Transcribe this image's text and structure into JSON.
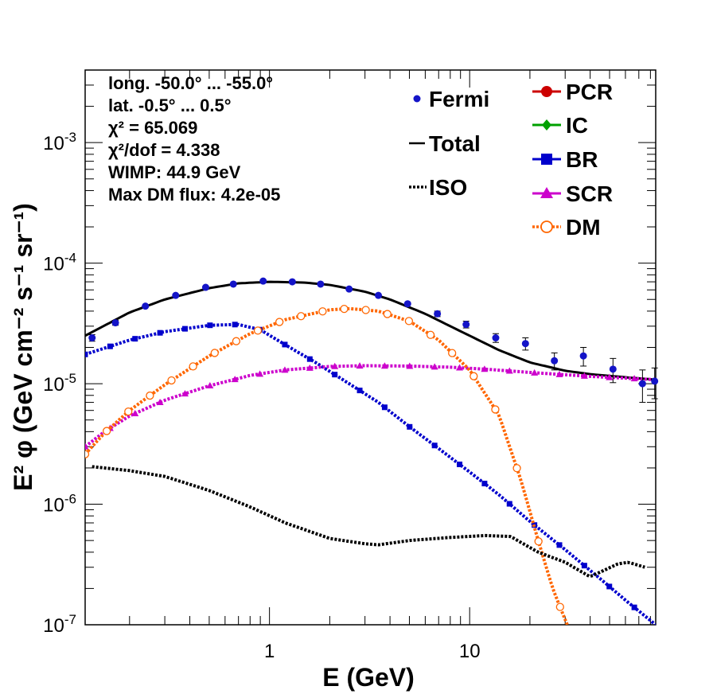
{
  "chart_data": {
    "type": "line",
    "x_scale": "log",
    "y_scale": "log",
    "xlabel": "E (GeV)",
    "ylabel": "E² φ (GeV cm⁻² s⁻¹ sr⁻¹)",
    "xlim": [
      0.12,
      85
    ],
    "ylim": [
      1e-07,
      0.004
    ],
    "x_ticks": [
      {
        "value": 1,
        "label": "1"
      },
      {
        "value": 10,
        "label": "10"
      }
    ],
    "y_ticks": [
      {
        "value": 1e-07,
        "base": "10",
        "exp": "-7"
      },
      {
        "value": 1e-06,
        "base": "10",
        "exp": "-6"
      },
      {
        "value": 1e-05,
        "base": "10",
        "exp": "-5"
      },
      {
        "value": 0.0001,
        "base": "10",
        "exp": "-4"
      },
      {
        "value": 0.001,
        "base": "10",
        "exp": "-3"
      }
    ],
    "info_lines": [
      "long. -50.0° ... -55.0°",
      "lat. -0.5° ... 0.5°",
      "χ² = 65.069",
      "χ²/dof = 4.338",
      "WIMP: 44.9 GeV",
      "Max DM flux: 4.2e-05"
    ],
    "legend_left": [
      {
        "name": "Fermi",
        "color": "#1414c8",
        "marker": "dot"
      },
      {
        "name": "Total",
        "color": "#000000",
        "marker": "line"
      },
      {
        "name": "ISO",
        "color": "#000000",
        "marker": "dotted"
      }
    ],
    "legend_right": [
      {
        "name": "PCR",
        "color": "#cc0000",
        "marker": "circle"
      },
      {
        "name": "IC",
        "color": "#00a000",
        "marker": "diamond"
      },
      {
        "name": "BR",
        "color": "#0000cc",
        "marker": "square"
      },
      {
        "name": "SCR",
        "color": "#cc00cc",
        "marker": "triangle"
      },
      {
        "name": "DM",
        "color": "#ff6600",
        "marker": "open-circle"
      }
    ],
    "fermi": [
      {
        "x": 0.13,
        "y": 2.4e-05,
        "err": 1.5e-06
      },
      {
        "x": 0.17,
        "y": 3.2e-05,
        "err": 1.5e-06
      },
      {
        "x": 0.24,
        "y": 4.4e-05,
        "err": 2e-06
      },
      {
        "x": 0.34,
        "y": 5.4e-05,
        "err": 2e-06
      },
      {
        "x": 0.48,
        "y": 6.3e-05,
        "err": 2e-06
      },
      {
        "x": 0.66,
        "y": 6.7e-05,
        "err": 2e-06
      },
      {
        "x": 0.93,
        "y": 7.1e-05,
        "err": 2e-06
      },
      {
        "x": 1.3,
        "y": 7e-05,
        "err": 2e-06
      },
      {
        "x": 1.8,
        "y": 6.7e-05,
        "err": 2e-06
      },
      {
        "x": 2.5,
        "y": 6.1e-05,
        "err": 2e-06
      },
      {
        "x": 3.5,
        "y": 5.4e-05,
        "err": 2e-06
      },
      {
        "x": 4.9,
        "y": 4.6e-05,
        "err": 2e-06
      },
      {
        "x": 6.9,
        "y": 3.8e-05,
        "err": 2e-06
      },
      {
        "x": 9.6,
        "y": 3.1e-05,
        "err": 2e-06
      },
      {
        "x": 13.5,
        "y": 2.4e-05,
        "err": 2e-06
      },
      {
        "x": 19,
        "y": 2.15e-05,
        "err": 2.5e-06
      },
      {
        "x": 26.5,
        "y": 1.55e-05,
        "err": 2.5e-06
      },
      {
        "x": 37,
        "y": 1.7e-05,
        "err": 3e-06
      },
      {
        "x": 52,
        "y": 1.32e-05,
        "err": 3e-06
      },
      {
        "x": 73,
        "y": 1e-05,
        "err": 3e-06
      },
      {
        "x": 84,
        "y": 1.05e-05,
        "err": 3e-06
      }
    ],
    "series": [
      {
        "name": "Total",
        "color": "#000000",
        "style": "solid",
        "x": [
          0.12,
          0.2,
          0.3,
          0.5,
          0.7,
          1.0,
          1.5,
          2.0,
          3.0,
          4.0,
          6.0,
          8.0,
          10,
          14,
          20,
          30,
          40,
          60,
          85
        ],
        "y": [
          2.5e-05,
          3.9e-05,
          5e-05,
          6.2e-05,
          6.8e-05,
          7e-05,
          6.9e-05,
          6.6e-05,
          5.8e-05,
          5e-05,
          3.8e-05,
          3e-05,
          2.5e-05,
          1.9e-05,
          1.5e-05,
          1.28e-05,
          1.2e-05,
          1.13e-05,
          1.08e-05
        ]
      },
      {
        "name": "BR",
        "color": "#0000cc",
        "style": "square",
        "x": [
          0.12,
          0.2,
          0.3,
          0.5,
          0.7,
          0.9,
          1.2,
          1.7,
          2.5,
          3.5,
          5,
          7,
          10,
          14,
          20,
          30,
          45,
          60,
          85
        ],
        "y": [
          1.75e-05,
          2.3e-05,
          2.7e-05,
          3.05e-05,
          3.1e-05,
          2.8e-05,
          2.1e-05,
          1.5e-05,
          1e-05,
          7e-06,
          4.4e-06,
          2.9e-06,
          1.85e-06,
          1.2e-06,
          7.2e-07,
          4.2e-07,
          2.4e-07,
          1.6e-07,
          1e-07
        ]
      },
      {
        "name": "SCR",
        "color": "#cc00cc",
        "style": "triangle",
        "x": [
          0.12,
          0.15,
          0.2,
          0.3,
          0.5,
          0.8,
          1.2,
          2.0,
          3.0,
          5.0,
          8.0,
          12,
          20,
          40,
          85
        ],
        "y": [
          3e-06,
          4e-06,
          5.4e-06,
          7.3e-06,
          9.6e-06,
          1.17e-05,
          1.3e-05,
          1.39e-05,
          1.41e-05,
          1.4e-05,
          1.37e-05,
          1.32e-05,
          1.24e-05,
          1.15e-05,
          1.08e-05
        ]
      },
      {
        "name": "DM",
        "color": "#ff6600",
        "style": "open-circle",
        "x": [
          0.12,
          0.15,
          0.2,
          0.3,
          0.5,
          0.8,
          1.2,
          2.0,
          2.5,
          3.5,
          5.0,
          7.0,
          10,
          14,
          18,
          22,
          26,
          30,
          35
        ],
        "y": [
          2.6e-06,
          3.9e-06,
          6e-06,
          9.8e-06,
          1.7e-05,
          2.6e-05,
          3.4e-05,
          4.1e-05,
          4.2e-05,
          4e-05,
          3.3e-05,
          2.3e-05,
          1.3e-05,
          5.5e-06,
          1.6e-06,
          5e-07,
          2e-07,
          1.1e-07,
          6e-08
        ]
      },
      {
        "name": "ISO",
        "color": "#000000",
        "style": "dotted",
        "x": [
          0.13,
          0.2,
          0.3,
          0.5,
          0.8,
          1.2,
          2.0,
          3.0,
          3.5,
          5.0,
          8.0,
          12,
          16,
          22,
          30,
          40,
          55,
          62,
          75
        ],
        "y": [
          2.05e-06,
          1.9e-06,
          1.7e-06,
          1.3e-06,
          9.5e-07,
          7e-07,
          5.2e-07,
          4.7e-07,
          4.6e-07,
          5e-07,
          5.3e-07,
          5.5e-07,
          5.4e-07,
          4e-07,
          3.3e-07,
          2.5e-07,
          3.2e-07,
          3.3e-07,
          3e-07
        ]
      }
    ]
  }
}
